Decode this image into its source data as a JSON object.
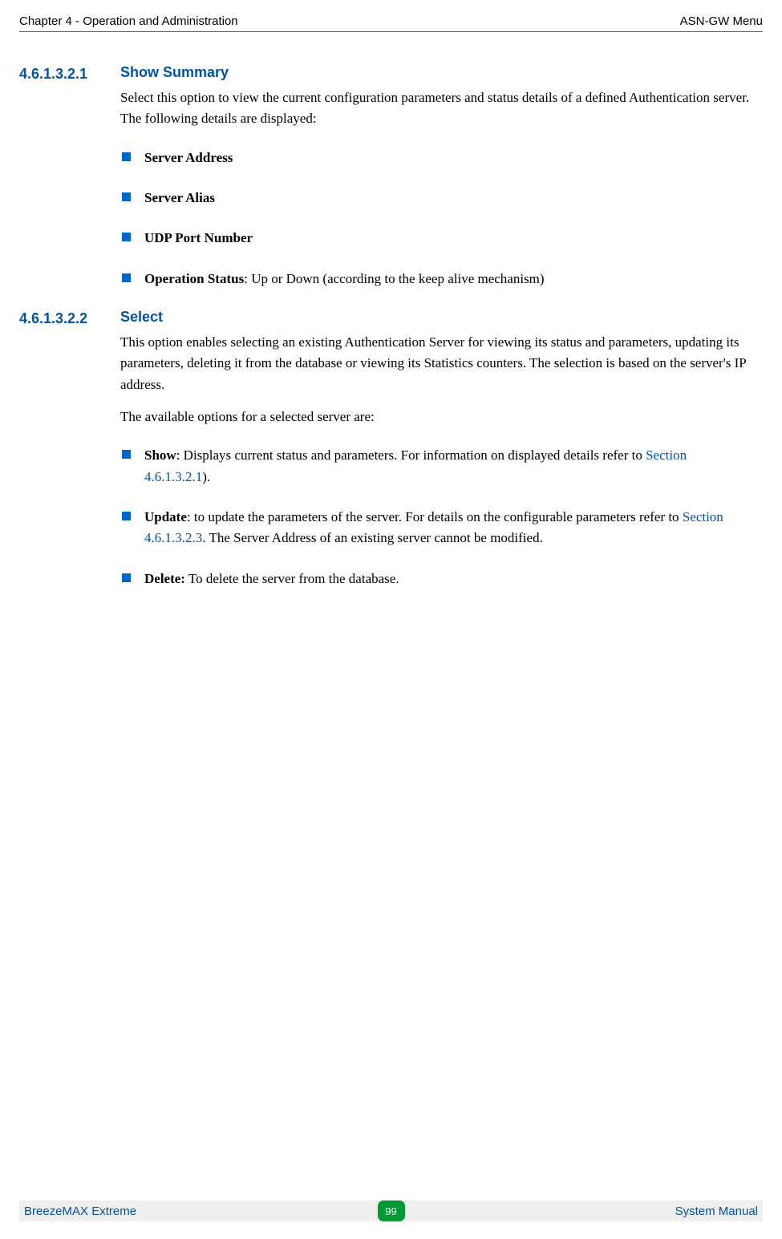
{
  "header": {
    "left": "Chapter 4 - Operation and Administration",
    "right": "ASN-GW Menu"
  },
  "colors": {
    "heading_blue": "#0054a6",
    "link_blue": "#0054a6",
    "bullet_blue": "#0066cc",
    "rule_green": "#009933",
    "pill_green": "#009933",
    "footer_bg": "#efefef",
    "text": "#000000"
  },
  "sections": [
    {
      "number": "4.6.1.3.2.1",
      "title": "Show Summary",
      "paras": [
        "Select this option to view the current configuration parameters and status details of a defined Authentication server. The following details are displayed:"
      ],
      "bullets": [
        {
          "bold": "Server Address",
          "rest": ""
        },
        {
          "bold": "Server Alias",
          "rest": ""
        },
        {
          "bold": "UDP Port Number",
          "rest": ""
        },
        {
          "bold": "Operation Status",
          "rest": ": Up or Down (according to the keep alive mechanism)"
        }
      ]
    },
    {
      "number": "4.6.1.3.2.2",
      "title": "Select",
      "paras": [
        "This option enables selecting an existing Authentication Server for viewing its status and parameters, updating its parameters, deleting it from the database or viewing its Statistics counters. The selection is based on the server's IP address.",
        "The available options for a selected server are:"
      ],
      "bullets2": [
        {
          "bold": "Show",
          "pre": ": Displays current status and parameters. For information on displayed details refer to ",
          "xref": "Section 4.6.1.3.2.1",
          "post": ")."
        },
        {
          "bold": "Update",
          "pre": ": to update the parameters of the server. For details on the configurable parameters refer to ",
          "xref": "Section 4.6.1.3.2.3",
          "post": ". The Server Address of an existing server cannot be modified."
        },
        {
          "bold": "Delete:",
          "pre": " To delete the server from the database.",
          "xref": "",
          "post": ""
        }
      ]
    }
  ],
  "footer": {
    "left": "BreezeMAX Extreme",
    "page": "99",
    "right": "System Manual"
  }
}
